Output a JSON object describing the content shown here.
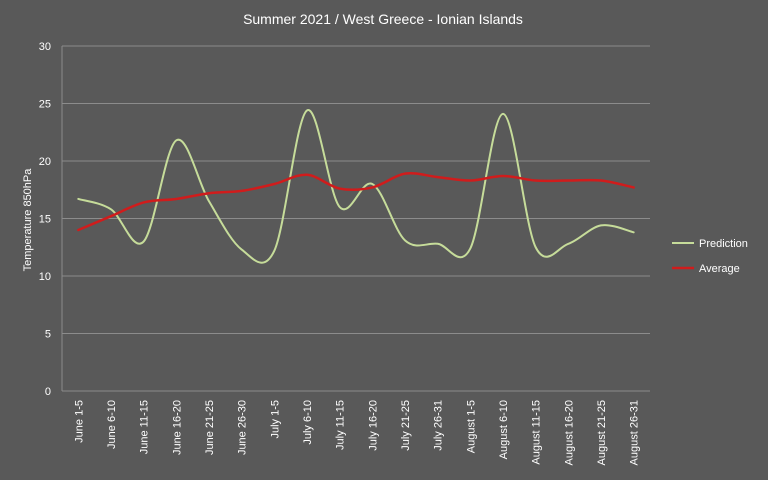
{
  "chart_data": {
    "type": "line",
    "title": "Summer 2021 / West Greece - Ionian Islands",
    "xlabel": "",
    "ylabel": "Temperature 850hPa",
    "ylim": [
      0,
      30
    ],
    "yticks": [
      0,
      5,
      10,
      15,
      20,
      25,
      30
    ],
    "grid": true,
    "legend_position": "right",
    "categories": [
      "June 1-5",
      "June 6-10",
      "June 11-15",
      "June 16-20",
      "June 21-25",
      "June 26-30",
      "July 1-5",
      "July 6-10",
      "July 11-15",
      "July 16-20",
      "July 21-25",
      "July 26-31",
      "August 1-5",
      "August 6-10",
      "August 11-15",
      "August 16-20",
      "August 21-25",
      "August 26-31"
    ],
    "series": [
      {
        "name": "Prediction",
        "color": "#c6dc9a",
        "values": [
          16.7,
          15.8,
          13.0,
          21.8,
          16.5,
          12.3,
          12.2,
          24.4,
          16.0,
          18.0,
          13.1,
          12.8,
          12.4,
          24.1,
          12.5,
          12.8,
          14.4,
          13.8
        ]
      },
      {
        "name": "Average",
        "color": "#d01c1c",
        "values": [
          14.0,
          15.2,
          16.4,
          16.7,
          17.2,
          17.4,
          18.0,
          18.8,
          17.6,
          17.7,
          18.9,
          18.6,
          18.3,
          18.7,
          18.3,
          18.3,
          18.3,
          17.7
        ]
      }
    ],
    "colors": {
      "background": "#595959",
      "gridline": "#8c8c8c",
      "text": "#ffffff"
    }
  }
}
